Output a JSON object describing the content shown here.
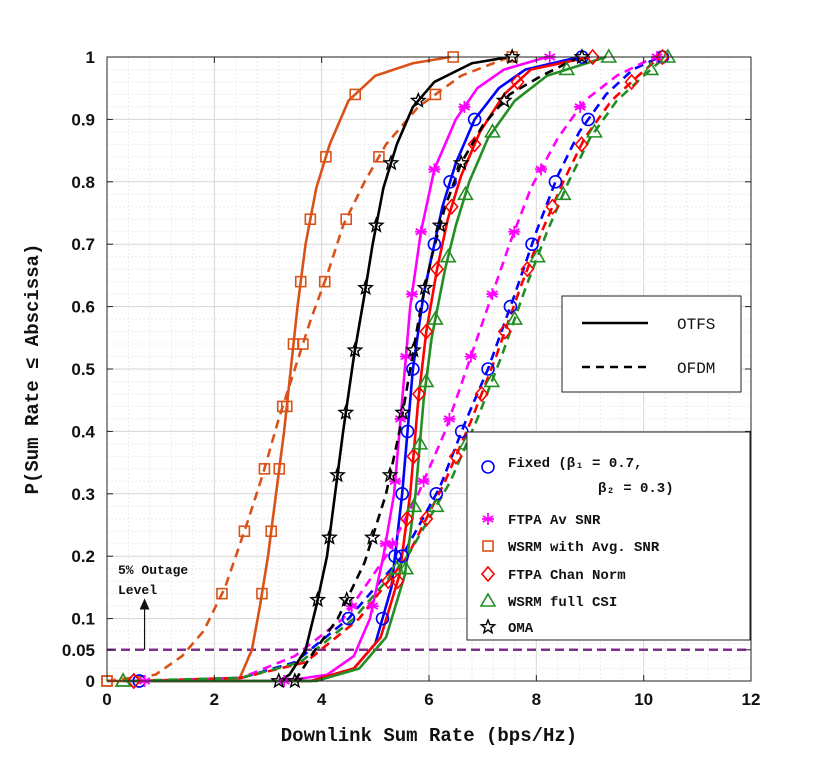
{
  "chart_data": {
    "type": "line",
    "xlabel": "Downlink Sum Rate (bps/Hz)",
    "ylabel": "P(Sum Rate ≤ Abscissa)",
    "xlim": [
      0,
      12
    ],
    "ylim": [
      0,
      1
    ],
    "xticks": [
      0,
      2,
      4,
      6,
      8,
      10,
      12
    ],
    "yticks": [
      0,
      0.05,
      0.1,
      0.2,
      0.3,
      0.4,
      0.5,
      0.6,
      0.7,
      0.8,
      0.9,
      1
    ],
    "ytick_labels": [
      "0",
      "0.05",
      "0.1",
      "0.2",
      "0.3",
      "0.4",
      "0.5",
      "0.6",
      "0.7",
      "0.8",
      "0.9",
      "1"
    ],
    "grid": true,
    "reference_line": {
      "y": 0.05,
      "color": "#7E2F8E"
    },
    "annotation": {
      "line1": "5% Outage",
      "line2": "Level",
      "x": 0.7,
      "y_tail": 0.05,
      "y_head": 0.13
    },
    "style_legend": {
      "position": "upper-right",
      "entries": [
        {
          "label": "OTFS",
          "style": "solid"
        },
        {
          "label": "OFDM",
          "style": "dashed"
        }
      ]
    },
    "series": [
      {
        "name": "Fixed",
        "legend_line1": "Fixed (β₁ = 0.7,",
        "legend_line2": "β₂ = 0.3)",
        "color": "#0000FF",
        "marker": "circle",
        "otfs": [
          [
            0.6,
            0
          ],
          [
            3.8,
            0
          ],
          [
            4.6,
            0.02
          ],
          [
            5.0,
            0.06
          ],
          [
            5.3,
            0.15
          ],
          [
            5.5,
            0.3
          ],
          [
            5.7,
            0.5
          ],
          [
            5.9,
            0.62
          ],
          [
            6.05,
            0.68
          ],
          [
            6.25,
            0.76
          ],
          [
            6.5,
            0.83
          ],
          [
            6.85,
            0.9
          ],
          [
            7.3,
            0.95
          ],
          [
            7.8,
            0.98
          ],
          [
            8.8,
            1.0
          ]
        ],
        "ofdm": [
          [
            0.6,
            0
          ],
          [
            2.5,
            0.005
          ],
          [
            3.5,
            0.03
          ],
          [
            4.5,
            0.1
          ],
          [
            5.5,
            0.2
          ],
          [
            6.2,
            0.31
          ],
          [
            6.7,
            0.42
          ],
          [
            7.1,
            0.5
          ],
          [
            7.6,
            0.62
          ],
          [
            8.0,
            0.72
          ],
          [
            8.4,
            0.81
          ],
          [
            8.8,
            0.88
          ],
          [
            9.3,
            0.94
          ],
          [
            9.8,
            0.98
          ],
          [
            10.3,
            1.0
          ]
        ]
      },
      {
        "name": "FTPA Av SNR",
        "legend_line1": "FTPA Av SNR",
        "color": "#FF00FF",
        "marker": "asterisk",
        "otfs": [
          [
            3.3,
            0
          ],
          [
            4.1,
            0.01
          ],
          [
            4.6,
            0.04
          ],
          [
            4.9,
            0.1
          ],
          [
            5.15,
            0.2
          ],
          [
            5.35,
            0.3
          ],
          [
            5.5,
            0.45
          ],
          [
            5.65,
            0.6
          ],
          [
            5.85,
            0.72
          ],
          [
            6.1,
            0.82
          ],
          [
            6.5,
            0.9
          ],
          [
            6.9,
            0.95
          ],
          [
            7.4,
            0.98
          ],
          [
            8.2,
            1.0
          ]
        ],
        "ofdm": [
          [
            0.7,
            0
          ],
          [
            2.5,
            0.005
          ],
          [
            3.5,
            0.04
          ],
          [
            4.4,
            0.1
          ],
          [
            5.2,
            0.2
          ],
          [
            5.8,
            0.3
          ],
          [
            6.3,
            0.4
          ],
          [
            6.7,
            0.5
          ],
          [
            7.1,
            0.6
          ],
          [
            7.5,
            0.7
          ],
          [
            7.9,
            0.79
          ],
          [
            8.4,
            0.87
          ],
          [
            8.9,
            0.93
          ],
          [
            9.5,
            0.97
          ],
          [
            10.2,
            1.0
          ]
        ]
      },
      {
        "name": "WSRM with Avg. SNR",
        "legend_line1": "WSRM with Avg. SNR",
        "color": "#D95319",
        "marker": "square",
        "otfs": [
          [
            0,
            0
          ],
          [
            2.45,
            0
          ],
          [
            2.7,
            0.05
          ],
          [
            2.85,
            0.12
          ],
          [
            3.0,
            0.2
          ],
          [
            3.15,
            0.3
          ],
          [
            3.3,
            0.4
          ],
          [
            3.45,
            0.52
          ],
          [
            3.55,
            0.6
          ],
          [
            3.7,
            0.7
          ],
          [
            3.9,
            0.79
          ],
          [
            4.15,
            0.86
          ],
          [
            4.5,
            0.93
          ],
          [
            5.0,
            0.97
          ],
          [
            5.7,
            0.99
          ],
          [
            6.4,
            1.0
          ]
        ],
        "ofdm": [
          [
            0,
            0
          ],
          [
            0.9,
            0.01
          ],
          [
            1.4,
            0.04
          ],
          [
            1.8,
            0.08
          ],
          [
            2.2,
            0.15
          ],
          [
            2.6,
            0.25
          ],
          [
            2.9,
            0.33
          ],
          [
            3.2,
            0.42
          ],
          [
            3.5,
            0.5
          ],
          [
            3.8,
            0.58
          ],
          [
            4.1,
            0.65
          ],
          [
            4.4,
            0.73
          ],
          [
            4.8,
            0.8
          ],
          [
            5.2,
            0.86
          ],
          [
            5.8,
            0.92
          ],
          [
            6.6,
            0.97
          ],
          [
            7.5,
            1.0
          ]
        ]
      },
      {
        "name": "FTPA Chan Norm",
        "legend_line1": "FTPA Chan Norm",
        "color": "#FF0000",
        "marker": "diamond",
        "otfs": [
          [
            0.5,
            0
          ],
          [
            3.8,
            0
          ],
          [
            4.6,
            0.02
          ],
          [
            5.1,
            0.07
          ],
          [
            5.45,
            0.17
          ],
          [
            5.65,
            0.3
          ],
          [
            5.8,
            0.45
          ],
          [
            5.95,
            0.56
          ],
          [
            6.15,
            0.66
          ],
          [
            6.35,
            0.74
          ],
          [
            6.6,
            0.81
          ],
          [
            6.95,
            0.88
          ],
          [
            7.4,
            0.94
          ],
          [
            7.9,
            0.98
          ],
          [
            9.0,
            1.0
          ]
        ],
        "ofdm": [
          [
            0.5,
            0
          ],
          [
            2.5,
            0.005
          ],
          [
            3.7,
            0.03
          ],
          [
            4.7,
            0.1
          ],
          [
            5.6,
            0.2
          ],
          [
            6.3,
            0.32
          ],
          [
            6.8,
            0.42
          ],
          [
            7.25,
            0.52
          ],
          [
            7.7,
            0.63
          ],
          [
            8.1,
            0.72
          ],
          [
            8.5,
            0.8
          ],
          [
            8.9,
            0.87
          ],
          [
            9.4,
            0.93
          ],
          [
            9.9,
            0.97
          ],
          [
            10.3,
            1.0
          ]
        ]
      },
      {
        "name": "WSRM full CSI",
        "legend_line1": "WSRM full CSI",
        "color": "#238E23",
        "marker": "triangle",
        "otfs": [
          [
            0.3,
            0
          ],
          [
            3.9,
            0
          ],
          [
            4.7,
            0.02
          ],
          [
            5.2,
            0.07
          ],
          [
            5.55,
            0.17
          ],
          [
            5.75,
            0.3
          ],
          [
            5.9,
            0.45
          ],
          [
            6.05,
            0.55
          ],
          [
            6.3,
            0.66
          ],
          [
            6.5,
            0.73
          ],
          [
            6.75,
            0.8
          ],
          [
            7.1,
            0.87
          ],
          [
            7.6,
            0.93
          ],
          [
            8.2,
            0.97
          ],
          [
            9.3,
            1.0
          ]
        ],
        "ofdm": [
          [
            0.3,
            0
          ],
          [
            2.5,
            0.005
          ],
          [
            3.6,
            0.03
          ],
          [
            4.6,
            0.1
          ],
          [
            5.6,
            0.2
          ],
          [
            6.4,
            0.32
          ],
          [
            6.9,
            0.42
          ],
          [
            7.35,
            0.52
          ],
          [
            7.8,
            0.63
          ],
          [
            8.2,
            0.72
          ],
          [
            8.6,
            0.8
          ],
          [
            9.0,
            0.87
          ],
          [
            9.5,
            0.93
          ],
          [
            10.0,
            0.97
          ],
          [
            10.4,
            1.0
          ]
        ]
      },
      {
        "name": "OMA",
        "legend_line1": "OMA",
        "color": "#000000",
        "marker": "star",
        "otfs": [
          [
            3.2,
            0
          ],
          [
            3.4,
            0.01
          ],
          [
            3.7,
            0.05
          ],
          [
            3.9,
            0.12
          ],
          [
            4.1,
            0.2
          ],
          [
            4.25,
            0.3
          ],
          [
            4.4,
            0.4
          ],
          [
            4.6,
            0.52
          ],
          [
            4.8,
            0.62
          ],
          [
            4.95,
            0.7
          ],
          [
            5.15,
            0.79
          ],
          [
            5.4,
            0.86
          ],
          [
            5.7,
            0.92
          ],
          [
            6.1,
            0.96
          ],
          [
            6.8,
            0.99
          ],
          [
            7.5,
            1.0
          ]
        ],
        "ofdm": [
          [
            3.5,
            0
          ],
          [
            3.8,
            0.04
          ],
          [
            4.3,
            0.1
          ],
          [
            4.8,
            0.19
          ],
          [
            5.2,
            0.3
          ],
          [
            5.45,
            0.4
          ],
          [
            5.65,
            0.5
          ],
          [
            5.85,
            0.6
          ],
          [
            6.05,
            0.68
          ],
          [
            6.3,
            0.76
          ],
          [
            6.6,
            0.83
          ],
          [
            7.0,
            0.89
          ],
          [
            7.5,
            0.94
          ],
          [
            8.1,
            0.97
          ],
          [
            8.8,
            1.0
          ]
        ]
      }
    ]
  }
}
